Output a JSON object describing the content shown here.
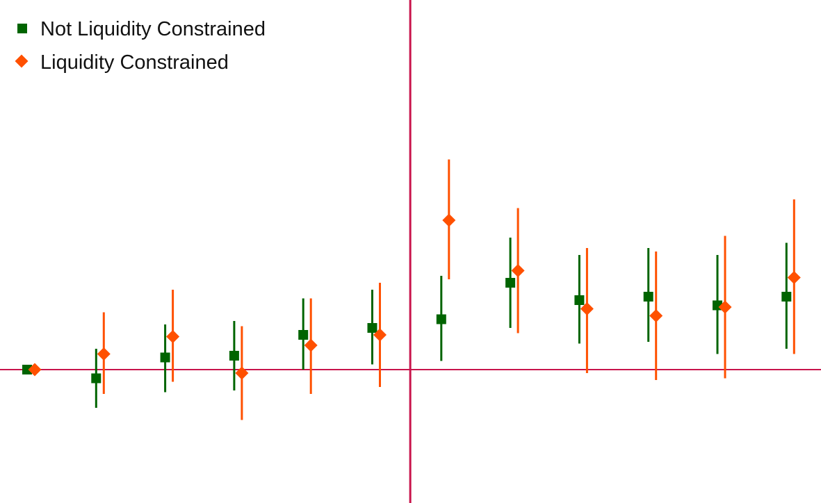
{
  "chart_data": {
    "type": "scatter",
    "subtype": "coefficient-plot-with-error-bars",
    "title": "",
    "xlabel": "",
    "ylabel": "",
    "grid": false,
    "legend_position": "top-left",
    "x": [
      -5,
      -4,
      -3,
      -2,
      -1,
      0,
      1,
      2,
      3,
      4,
      5,
      6
    ],
    "event_line_between": [
      0,
      1
    ],
    "zero_line": 0,
    "ylim": [
      -6,
      16
    ],
    "series": [
      {
        "name": "Not Liquidity Constrained",
        "marker": "square",
        "color": "#006400",
        "values": [
          0.0,
          -0.5,
          0.7,
          0.8,
          2.0,
          2.4,
          2.9,
          5.0,
          4.0,
          4.2,
          3.7,
          4.2
        ],
        "ci_lower": [
          0.0,
          -2.2,
          -1.3,
          -1.2,
          0.0,
          0.3,
          0.5,
          2.4,
          1.5,
          1.6,
          0.9,
          1.2
        ],
        "ci_upper": [
          0.0,
          1.2,
          2.6,
          2.8,
          4.1,
          4.6,
          5.4,
          7.6,
          6.6,
          7.0,
          6.6,
          7.3
        ]
      },
      {
        "name": "Liquidity Constrained",
        "marker": "diamond",
        "color": "#FF5000",
        "values": [
          0.0,
          0.9,
          1.9,
          -0.2,
          1.4,
          2.0,
          8.6,
          5.7,
          3.5,
          3.1,
          3.6,
          5.3
        ],
        "ci_lower": [
          0.0,
          -1.4,
          -0.7,
          -2.9,
          -1.4,
          -1.0,
          5.2,
          2.1,
          -0.2,
          -0.6,
          -0.5,
          0.9
        ],
        "ci_upper": [
          0.0,
          3.3,
          4.6,
          2.5,
          4.1,
          5.0,
          12.1,
          9.3,
          7.0,
          6.8,
          7.7,
          9.8
        ]
      }
    ]
  }
}
